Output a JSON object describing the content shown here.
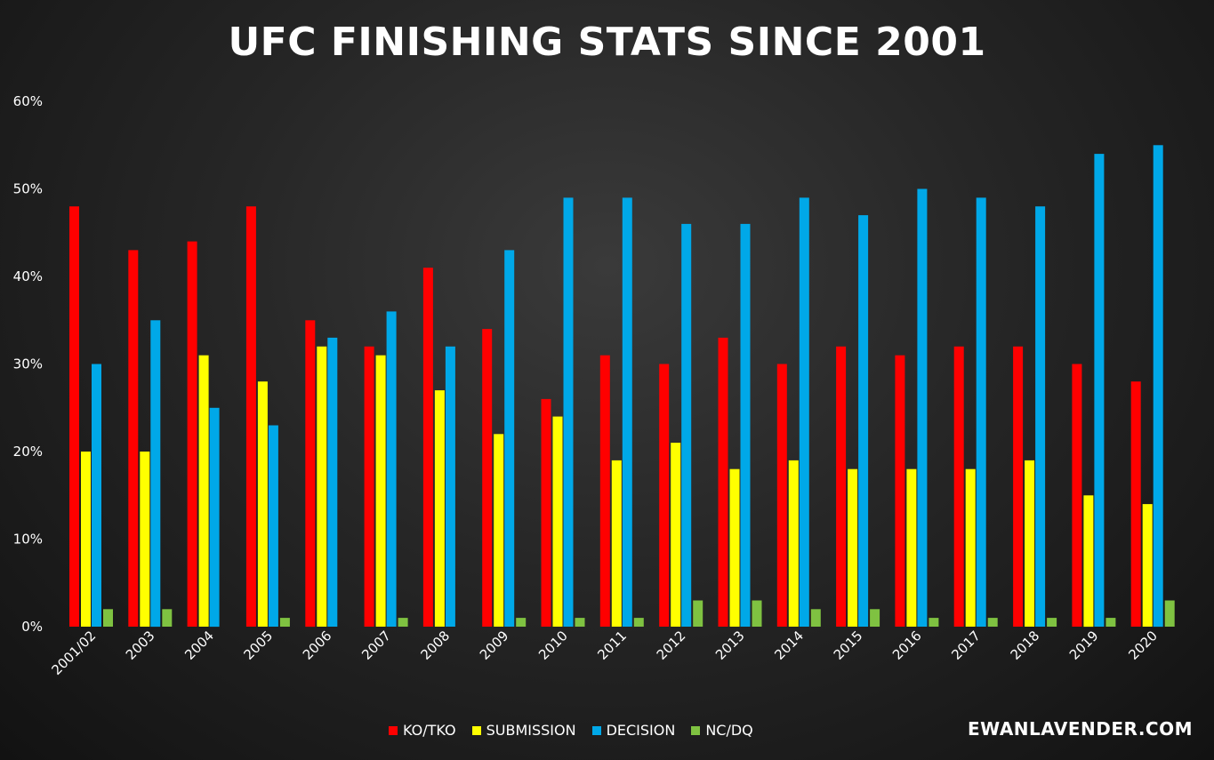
{
  "chart_data": {
    "type": "bar",
    "title": "UFC FINISHING STATS SINCE 2001",
    "categories": [
      "2001/02",
      "2003",
      "2004",
      "2005",
      "2006",
      "2007",
      "2008",
      "2009",
      "2010",
      "2011",
      "2012",
      "2013",
      "2014",
      "2015",
      "2016",
      "2017",
      "2018",
      "2019",
      "2020"
    ],
    "series": [
      {
        "name": "KO/TKO",
        "color": "#ff0000",
        "values": [
          48,
          43,
          44,
          48,
          35,
          32,
          41,
          34,
          26,
          31,
          30,
          33,
          30,
          32,
          31,
          32,
          32,
          30,
          28
        ]
      },
      {
        "name": "SUBMISSION",
        "color": "#ffff00",
        "values": [
          20,
          20,
          31,
          28,
          32,
          31,
          27,
          22,
          24,
          19,
          21,
          18,
          19,
          18,
          18,
          18,
          19,
          15,
          14
        ]
      },
      {
        "name": "DECISION",
        "color": "#00a8e8",
        "values": [
          30,
          35,
          25,
          23,
          33,
          36,
          32,
          43,
          49,
          49,
          46,
          46,
          49,
          47,
          50,
          49,
          48,
          54,
          55
        ]
      },
      {
        "name": "NC/DQ",
        "color": "#7fc241",
        "values": [
          2,
          2,
          0,
          1,
          0,
          1,
          0,
          1,
          1,
          1,
          3,
          3,
          2,
          2,
          1,
          1,
          1,
          1,
          3
        ]
      }
    ],
    "yticks": [
      "0%",
      "10%",
      "20%",
      "30%",
      "40%",
      "50%",
      "60%"
    ],
    "ylim": [
      0,
      60
    ],
    "xlabel": "",
    "ylabel": "",
    "grid": false,
    "legend_position": "bottom"
  },
  "watermark": "EWANLAVENDER.COM"
}
